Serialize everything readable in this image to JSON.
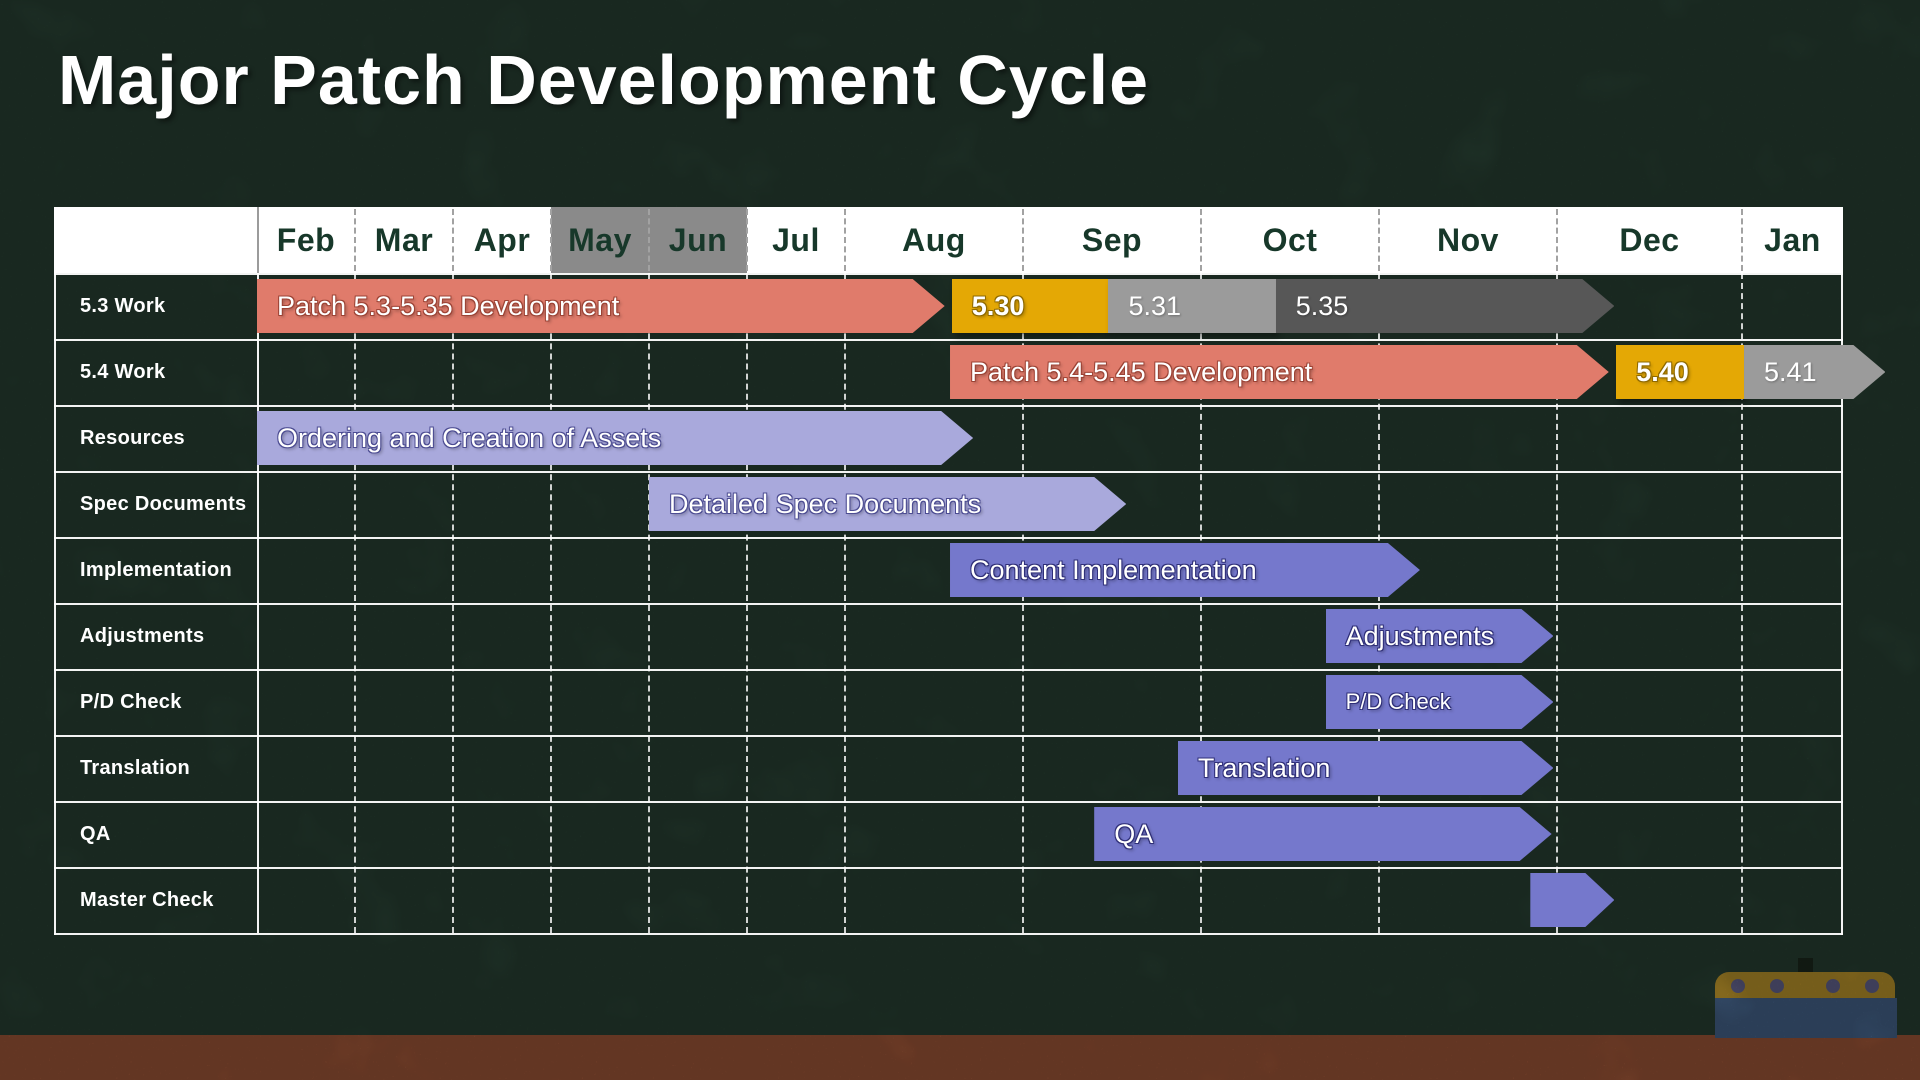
{
  "title": "Major Patch Development Cycle",
  "timeline": {
    "months": [
      "Feb",
      "Mar",
      "Apr",
      "May",
      "Jun",
      "Jul",
      "Aug",
      "Sep",
      "Oct",
      "Nov",
      "Dec",
      "Jan"
    ],
    "highlighted_months": [
      "May",
      "Jun"
    ]
  },
  "colors": {
    "bg": "#2B4537",
    "ground": "#A85C3C",
    "hl": "#8A8A8A",
    "monthtext": "#17382A",
    "salmon": "#E07B6B",
    "gold": "#E4A805",
    "gray": "#9B9B9B",
    "darkgray": "#575757",
    "lavender": "#A9A9DC",
    "violet": "#7578CC",
    "hull": "#4A6B94",
    "deck": "#C79D2E",
    "funnel": "#1E2B20",
    "porthole": "#6B6B97"
  },
  "chart_data": {
    "type": "bar",
    "subtype": "gantt-timeline",
    "title": "Major Patch Development Cycle",
    "x_axis": {
      "unit": "month",
      "labels": [
        "Feb",
        "Mar",
        "Apr",
        "May",
        "Jun",
        "Jul",
        "Aug",
        "Sep",
        "Oct",
        "Nov",
        "Dec",
        "Jan"
      ],
      "note": "start/end values: 0 = beginning of Feb, 12 = end of Jan; fractions are positions within a month"
    },
    "legend": "none",
    "grid": "dashed monthly verticals, solid row separators",
    "rows": [
      {
        "label": "5.3 Work",
        "bars": [
          {
            "text": "Patch 5.3-5.35 Development",
            "start": 0.0,
            "end": 6.56,
            "color": "salmon",
            "arrow": true,
            "bold": false
          },
          {
            "text": "5.30",
            "start": 6.6,
            "end": 7.48,
            "color": "gold",
            "arrow": false,
            "bold": true
          },
          {
            "text": "5.31",
            "start": 7.48,
            "end": 8.42,
            "color": "gray",
            "arrow": false,
            "bold": false
          },
          {
            "text": "5.35",
            "start": 8.42,
            "end": 10.31,
            "color": "darkgray",
            "arrow": true,
            "bold": false
          }
        ]
      },
      {
        "label": "5.4 Work",
        "bars": [
          {
            "text": "Patch 5.4-5.45 Development",
            "start": 6.59,
            "end": 10.28,
            "color": "salmon",
            "arrow": true,
            "bold": false
          },
          {
            "text": "5.40",
            "start": 10.32,
            "end": 11.02,
            "color": "gold",
            "arrow": false,
            "bold": true
          },
          {
            "text": "5.41",
            "start": 11.02,
            "end": 12.42,
            "color": "gray",
            "arrow": true,
            "bold": false
          }
        ]
      },
      {
        "label": "Resources",
        "bars": [
          {
            "text": "Ordering and Creation of Assets",
            "start": 0.0,
            "end": 6.72,
            "color": "lavender",
            "arrow": true,
            "bold": false
          }
        ]
      },
      {
        "label": "Spec Documents",
        "bars": [
          {
            "text": "Detailed Spec Documents",
            "start": 4.0,
            "end": 7.58,
            "color": "lavender",
            "arrow": true,
            "bold": false
          }
        ]
      },
      {
        "label": "Implementation",
        "bars": [
          {
            "text": "Content Implementation",
            "start": 6.59,
            "end": 9.23,
            "color": "violet",
            "arrow": true,
            "bold": false
          }
        ]
      },
      {
        "label": "Adjustments",
        "bars": [
          {
            "text": "Adjustments",
            "start": 8.7,
            "end": 9.98,
            "color": "violet",
            "arrow": true,
            "bold": false
          }
        ]
      },
      {
        "label": "P/D Check",
        "bars": [
          {
            "text": "P/D Check",
            "start": 8.7,
            "end": 9.98,
            "color": "violet",
            "arrow": true,
            "bold": false,
            "small": true
          }
        ]
      },
      {
        "label": "Translation",
        "bars": [
          {
            "text": "Translation",
            "start": 7.87,
            "end": 9.98,
            "color": "violet",
            "arrow": true,
            "bold": false
          }
        ]
      },
      {
        "label": "QA",
        "bars": [
          {
            "text": "QA",
            "start": 7.4,
            "end": 9.97,
            "color": "violet",
            "arrow": true,
            "bold": false
          }
        ]
      },
      {
        "label": "Master Check",
        "bars": [
          {
            "text": "",
            "start": 9.85,
            "end": 10.31,
            "color": "violet",
            "arrow": true,
            "bold": false
          }
        ]
      }
    ]
  }
}
